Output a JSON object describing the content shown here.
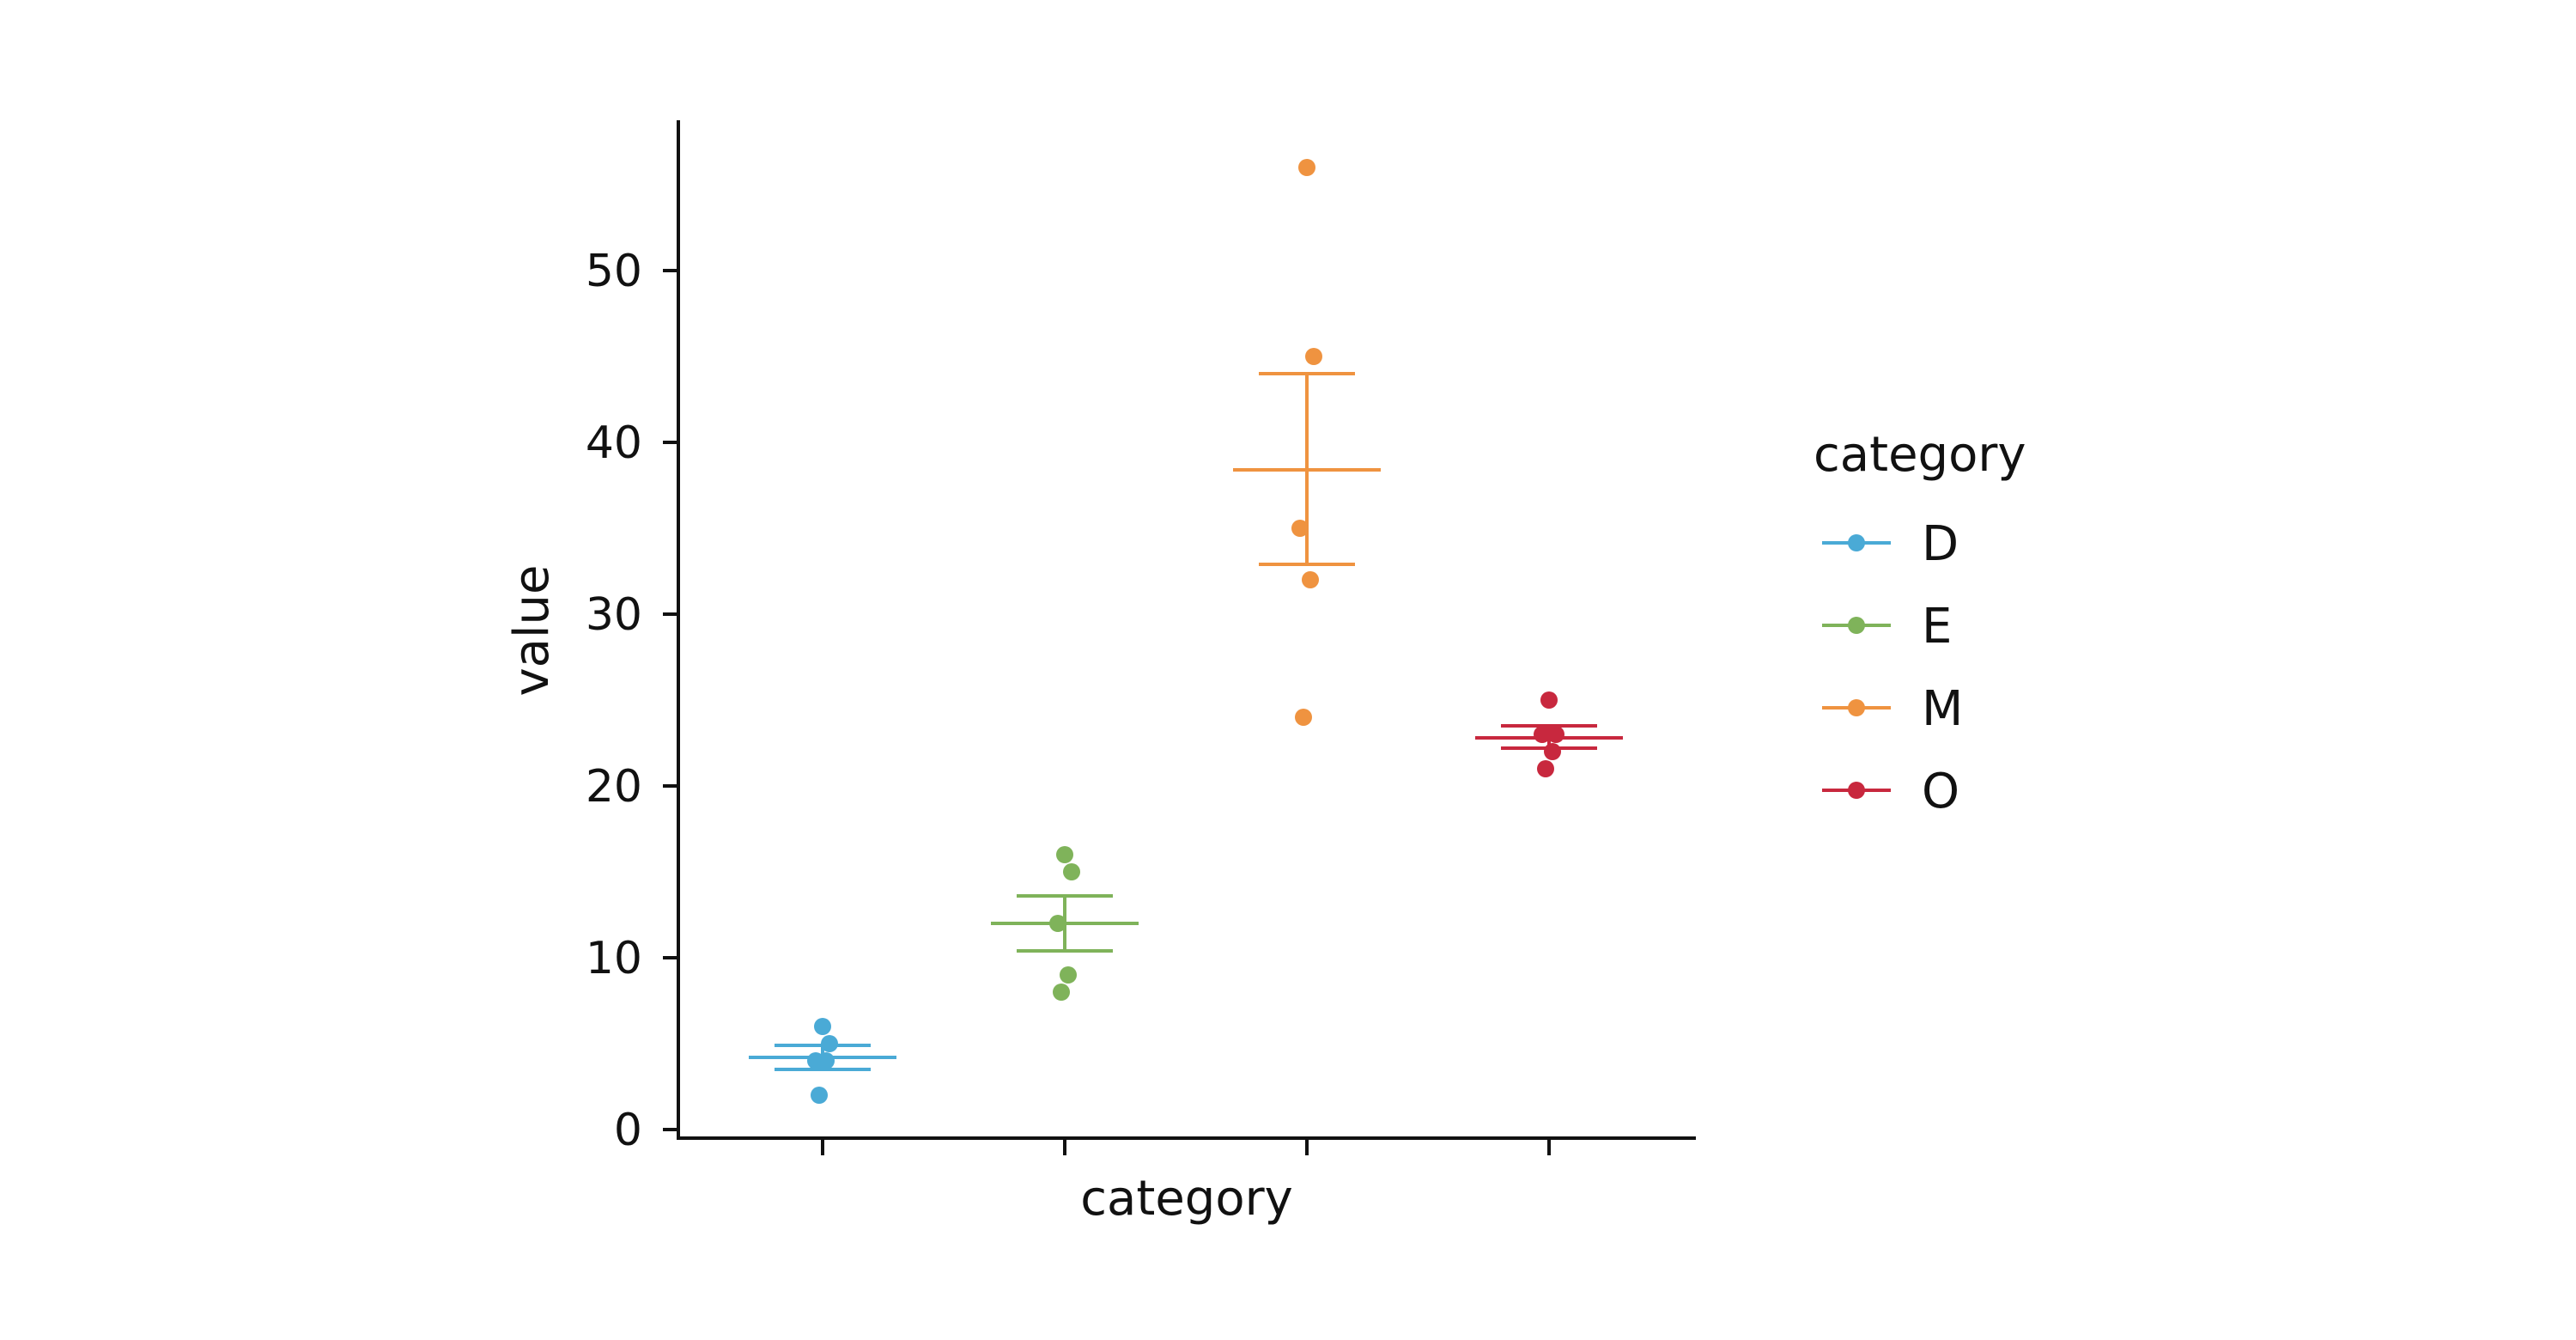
{
  "chart_data": {
    "type": "scatter",
    "xlabel": "category",
    "ylabel": "value",
    "categories": [
      "D",
      "E",
      "M",
      "O"
    ],
    "ylim": [
      0,
      58
    ],
    "yticks": [
      0,
      10,
      20,
      30,
      40,
      50
    ],
    "legend": {
      "title": "category",
      "position": "right"
    },
    "grid": false,
    "series": [
      {
        "name": "D",
        "color": "#4aaad6",
        "points": [
          6,
          5,
          4,
          4,
          2
        ],
        "mean": 4.2,
        "err_low": 3.5,
        "err_high": 4.9
      },
      {
        "name": "E",
        "color": "#7fb35a",
        "points": [
          16,
          15,
          12,
          9,
          8
        ],
        "mean": 12.0,
        "err_low": 10.4,
        "err_high": 13.6
      },
      {
        "name": "M",
        "color": "#ef9340",
        "points": [
          56,
          45,
          35,
          32,
          24
        ],
        "mean": 38.4,
        "err_low": 32.9,
        "err_high": 44.0
      },
      {
        "name": "O",
        "color": "#c8283e",
        "points": [
          25,
          23,
          23,
          22,
          21
        ],
        "mean": 22.8,
        "err_low": 22.2,
        "err_high": 23.5
      }
    ]
  }
}
